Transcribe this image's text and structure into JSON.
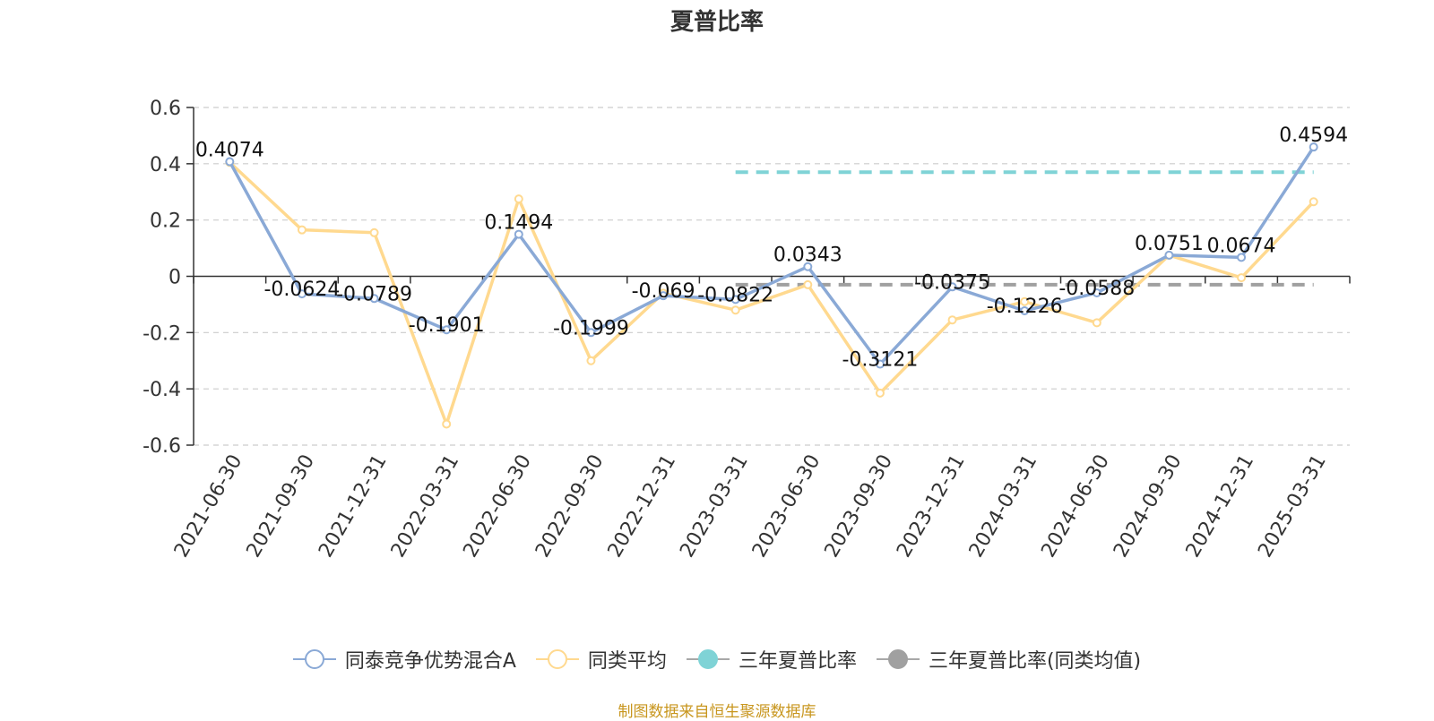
{
  "title": "夏普比率",
  "source": "制图数据来自恒生聚源数据库",
  "legend": [
    {
      "label": "同泰竞争优势混合A",
      "color": "#8aa9d6",
      "marker": "hollow-circle-icon"
    },
    {
      "label": "同类平均",
      "color": "#ffd98f",
      "marker": "hollow-circle-icon"
    },
    {
      "label": "三年夏普比率",
      "color": "#7fd3d6",
      "marker": "filled-circle-icon"
    },
    {
      "label": "三年夏普比率(同类均值)",
      "color": "#a0a0a0",
      "marker": "filled-circle-icon"
    }
  ],
  "chart_data": {
    "type": "line",
    "title": "夏普比率",
    "categories": [
      "2021-06-30",
      "2021-09-30",
      "2021-12-31",
      "2022-03-31",
      "2022-06-30",
      "2022-09-30",
      "2022-12-31",
      "2023-03-31",
      "2023-06-30",
      "2023-09-30",
      "2023-12-31",
      "2024-03-31",
      "2024-06-30",
      "2024-09-30",
      "2024-12-31",
      "2025-03-31"
    ],
    "ylim": [
      -0.6,
      0.6
    ],
    "yticks": [
      "0.6",
      "0.4",
      "0.2",
      "0",
      "-0.2",
      "-0.4",
      "-0.6"
    ],
    "ytick_values": [
      0.6,
      0.4,
      0.2,
      0,
      -0.2,
      -0.4,
      -0.6
    ],
    "grid": true,
    "legend_position": "bottom",
    "series": [
      {
        "name": "同泰竞争优势混合A",
        "color": "#8aa9d6",
        "values": [
          0.4074,
          -0.0624,
          -0.0789,
          -0.1901,
          0.1494,
          -0.1999,
          -0.069,
          -0.0822,
          0.0343,
          -0.3121,
          -0.0375,
          -0.1226,
          -0.0588,
          0.0751,
          0.0674,
          0.4594
        ],
        "labels": [
          "0.4074",
          "-0.0624",
          "-0.0789",
          "-0.1901",
          "0.1494",
          "-0.1999",
          "-0.069",
          "-0.0822",
          "0.0343",
          "-0.3121",
          "-0.0375",
          "-0.1226",
          "-0.0588",
          "0.0751",
          "0.0674",
          "0.4594"
        ]
      },
      {
        "name": "同类平均",
        "color": "#ffd98f",
        "values": [
          0.405,
          0.165,
          0.155,
          -0.525,
          0.275,
          -0.3,
          -0.06,
          -0.12,
          -0.03,
          -0.415,
          -0.155,
          -0.09,
          -0.165,
          0.075,
          -0.005,
          0.265
        ]
      }
    ],
    "reference_lines": [
      {
        "name": "三年夏普比率",
        "color": "#7fd3d6",
        "value": 0.37,
        "from": "2023-03-31",
        "to": "2025-03-31"
      },
      {
        "name": "三年夏普比率(同类均值)",
        "color": "#a0a0a0",
        "value": -0.03,
        "from": "2023-03-31",
        "to": "2025-03-31"
      }
    ]
  }
}
